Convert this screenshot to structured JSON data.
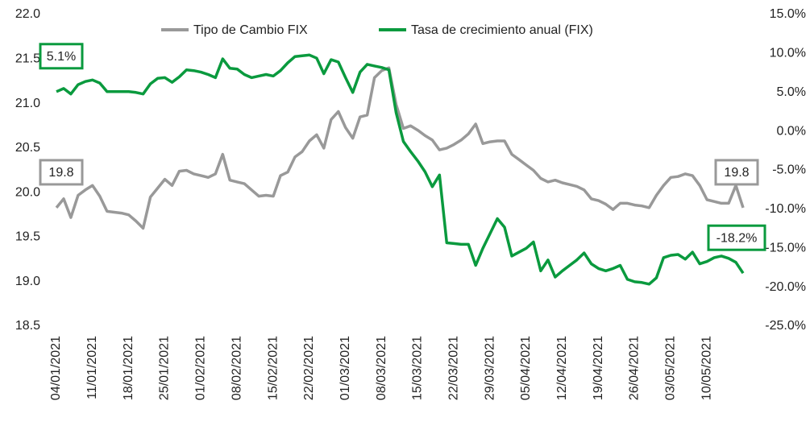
{
  "chart_data": {
    "type": "line",
    "categories": [
      "04/01/2021",
      null,
      null,
      null,
      null,
      "11/01/2021",
      null,
      null,
      null,
      null,
      "18/01/2021",
      null,
      null,
      null,
      null,
      "25/01/2021",
      null,
      null,
      null,
      null,
      "01/02/2021",
      null,
      null,
      null,
      null,
      "08/02/2021",
      null,
      null,
      null,
      null,
      "15/02/2021",
      null,
      null,
      null,
      null,
      "22/02/2021",
      null,
      null,
      null,
      null,
      "01/03/2021",
      null,
      null,
      null,
      null,
      "08/03/2021",
      null,
      null,
      null,
      null,
      "15/03/2021",
      null,
      null,
      null,
      null,
      "22/03/2021",
      null,
      null,
      null,
      null,
      "29/03/2021",
      null,
      null,
      null,
      null,
      "05/04/2021",
      null,
      null,
      null,
      null,
      "12/04/2021",
      null,
      null,
      null,
      null,
      "19/04/2021",
      null,
      null,
      null,
      null,
      "26/04/2021",
      null,
      null,
      null,
      null,
      "03/05/2021",
      null,
      null,
      null,
      null,
      "10/05/2021",
      null,
      null,
      null,
      null,
      null
    ],
    "series": [
      {
        "name": "Tipo de Cambio FIX",
        "color": "#999999",
        "axis": "y",
        "values": [
          19.83,
          19.93,
          19.72,
          19.97,
          20.03,
          20.08,
          19.96,
          19.79,
          19.78,
          19.77,
          19.75,
          19.68,
          19.6,
          19.95,
          20.05,
          20.15,
          20.08,
          20.24,
          20.25,
          20.21,
          20.19,
          20.17,
          20.21,
          20.43,
          20.14,
          20.12,
          20.1,
          20.03,
          19.96,
          19.97,
          19.96,
          20.19,
          20.23,
          20.4,
          20.46,
          20.58,
          20.65,
          20.5,
          20.82,
          20.91,
          20.73,
          20.61,
          20.85,
          20.87,
          21.29,
          21.37,
          21.4,
          20.99,
          20.72,
          20.75,
          20.7,
          20.64,
          20.59,
          20.48,
          20.5,
          20.54,
          20.59,
          20.66,
          20.77,
          20.55,
          20.57,
          20.58,
          20.58,
          20.43,
          20.37,
          20.31,
          20.25,
          20.16,
          20.12,
          20.14,
          20.11,
          20.09,
          20.07,
          20.03,
          19.93,
          19.91,
          19.87,
          19.81,
          19.88,
          19.88,
          19.86,
          19.85,
          19.83,
          19.97,
          20.08,
          20.17,
          20.18,
          20.21,
          20.19,
          20.08,
          19.92,
          19.9,
          19.88,
          19.88,
          20.08,
          19.83
        ],
        "value_labels": [
          "19.8",
          null,
          null,
          null,
          null,
          null,
          null,
          null,
          null,
          null,
          null,
          null,
          null,
          null,
          null,
          null,
          null,
          null,
          null,
          null,
          null,
          null,
          null,
          null,
          null,
          null,
          null,
          null,
          null,
          null,
          null,
          null,
          null,
          null,
          null,
          null,
          null,
          null,
          null,
          null,
          null,
          null,
          null,
          null,
          null,
          null,
          null,
          null,
          null,
          null,
          null,
          null,
          null,
          null,
          null,
          null,
          null,
          null,
          null,
          null,
          null,
          null,
          null,
          null,
          null,
          null,
          null,
          null,
          null,
          null,
          null,
          null,
          null,
          null,
          null,
          null,
          null,
          null,
          null,
          null,
          null,
          null,
          null,
          null,
          null,
          null,
          null,
          null,
          null,
          null,
          null,
          null,
          null,
          null,
          null,
          "19.8"
        ]
      },
      {
        "name": "Tasa de crecimiento anual (FIX)",
        "color": "#0a9a3e",
        "axis": "y2",
        "values": [
          5.1,
          5.5,
          4.8,
          6.0,
          6.4,
          6.6,
          6.2,
          5.1,
          5.1,
          5.1,
          5.1,
          5.0,
          4.8,
          6.1,
          6.8,
          6.9,
          6.3,
          7.0,
          7.9,
          7.8,
          7.6,
          7.3,
          6.9,
          9.3,
          8.1,
          8.0,
          7.3,
          6.9,
          7.1,
          7.3,
          7.1,
          7.8,
          8.8,
          9.6,
          9.7,
          9.8,
          9.4,
          7.4,
          9.2,
          8.9,
          6.9,
          5.0,
          7.6,
          8.6,
          8.4,
          8.2,
          7.9,
          2.4,
          -1.3,
          -2.6,
          -3.8,
          -5.2,
          -7.1,
          -5.6,
          -14.3,
          -14.4,
          -14.5,
          -14.5,
          -17.2,
          -15.0,
          -13.1,
          -11.2,
          -12.3,
          -16.0,
          -15.5,
          -15.0,
          -14.2,
          -17.9,
          -16.5,
          -18.7,
          -17.9,
          -17.2,
          -16.5,
          -15.6,
          -17.0,
          -17.6,
          -17.9,
          -17.6,
          -17.2,
          -19.0,
          -19.3,
          -19.4,
          -19.6,
          -18.8,
          -16.2,
          -15.9,
          -15.8,
          -16.4,
          -15.5,
          -17.0,
          -16.7,
          -16.2,
          -16.0,
          -16.3,
          -16.8,
          -18.2
        ],
        "value_labels": [
          "5.1%",
          null,
          null,
          null,
          null,
          null,
          null,
          null,
          null,
          null,
          null,
          null,
          null,
          null,
          null,
          null,
          null,
          null,
          null,
          null,
          null,
          null,
          null,
          null,
          null,
          null,
          null,
          null,
          null,
          null,
          null,
          null,
          null,
          null,
          null,
          null,
          null,
          null,
          null,
          null,
          null,
          null,
          null,
          null,
          null,
          null,
          null,
          null,
          null,
          null,
          null,
          null,
          null,
          null,
          null,
          null,
          null,
          null,
          null,
          null,
          null,
          null,
          null,
          null,
          null,
          null,
          null,
          null,
          null,
          null,
          null,
          null,
          null,
          null,
          null,
          null,
          null,
          null,
          null,
          null,
          null,
          null,
          null,
          null,
          null,
          null,
          null,
          null,
          null,
          null,
          null,
          null,
          null,
          null,
          null,
          "-18.2%"
        ]
      }
    ],
    "ylim": [
      18.5,
      22
    ],
    "yticks": [
      18.5,
      {
        "value": 19,
        "label": "19.0"
      },
      19.5,
      {
        "value": 20,
        "label": "20.0"
      },
      20.5,
      {
        "value": 21,
        "label": "21.0"
      },
      21.5,
      {
        "value": 22,
        "label": "22.0"
      }
    ],
    "y2lim": [
      -25,
      15
    ],
    "y2ticks": [
      {
        "value": -25,
        "label": "-25.0%"
      },
      {
        "value": -20,
        "label": "-20.0%"
      },
      {
        "value": -15,
        "label": "-15.0%"
      },
      {
        "value": -10,
        "label": "-10.0%"
      },
      {
        "value": -5,
        "label": "-5.0%"
      },
      {
        "value": 0,
        "label": "0.0%"
      },
      {
        "value": 5,
        "label": "5.0%"
      },
      {
        "value": 10,
        "label": "10.0%"
      },
      {
        "value": 15,
        "label": "15.0%"
      }
    ],
    "legend": "top",
    "grid": false
  }
}
